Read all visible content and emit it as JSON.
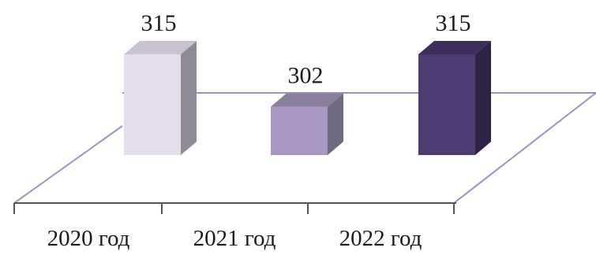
{
  "chart_data": {
    "type": "bar",
    "categories": [
      "2020 год",
      "2021 год",
      "2022 год"
    ],
    "values": [
      315,
      302,
      315
    ],
    "data_labels": [
      "315",
      "302",
      "315"
    ],
    "title": "",
    "xlabel": "",
    "ylabel": "",
    "ylim": [
      290,
      320
    ],
    "grid": false,
    "legend": "none",
    "style": "3d-column",
    "colors": {
      "bars": [
        {
          "front": "#e4dded",
          "side": "#8f8a96",
          "top": "#c9c3d0"
        },
        {
          "front": "#a996c2",
          "side": "#6f6a7d",
          "top": "#8a7f9b"
        },
        {
          "front": "#4e3b73",
          "side": "#2e2247",
          "top": "#3d2e5c"
        }
      ],
      "floor_line": "#9a93bf",
      "axis_line": "#555555"
    }
  }
}
